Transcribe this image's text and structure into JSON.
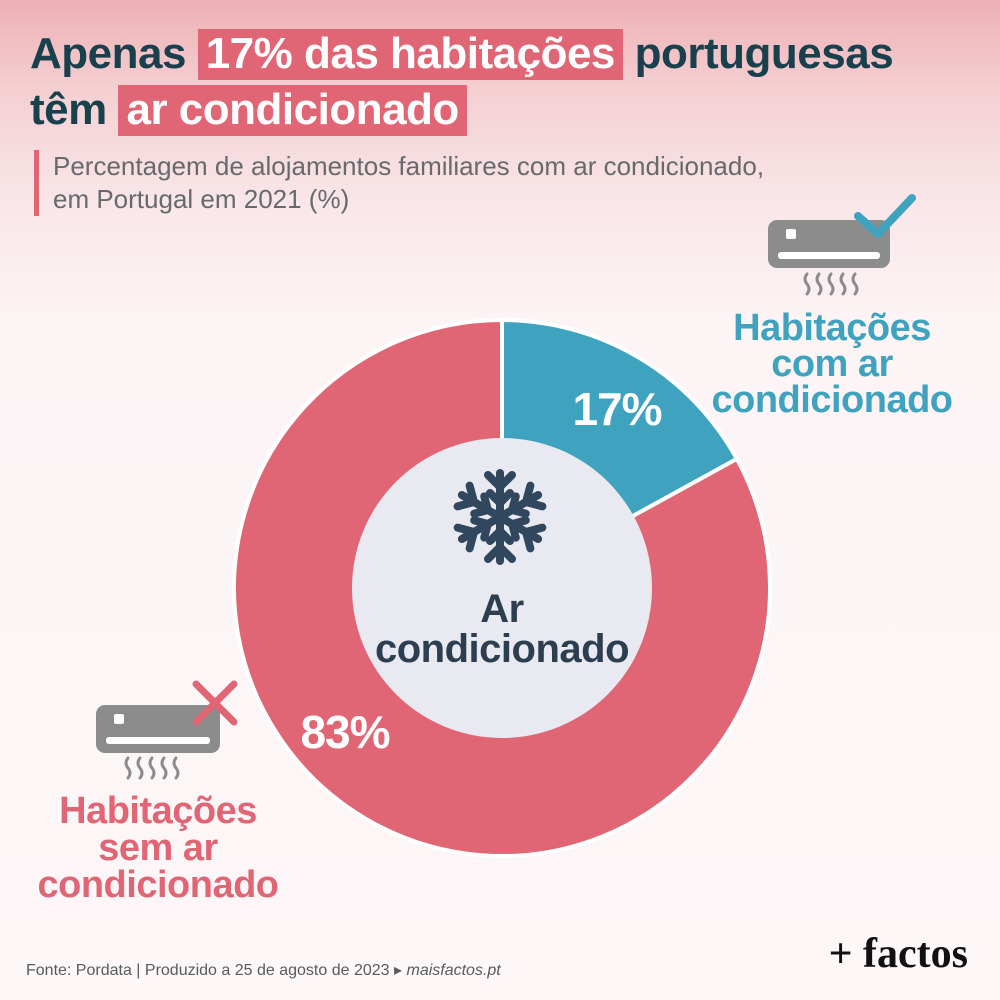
{
  "title": {
    "part1": "Apenas",
    "highlight1": "17% das habitações",
    "part2": "portuguesas",
    "part3": "têm",
    "highlight2": "ar condicionado"
  },
  "subtitle": {
    "line1": "Percentagem de alojamentos familiares com ar condicionado,",
    "line2": "em Portugal em 2021 (%)"
  },
  "chart_data": {
    "type": "pie",
    "donut": true,
    "center_label": [
      "Ar",
      "condicionado"
    ],
    "slices": [
      {
        "label": "Habitações com ar condicionado",
        "label_lines": [
          "Habitações",
          "com ar",
          "condicionado"
        ],
        "value": 17,
        "display": "17%",
        "color": "#3fa3bf",
        "icon": "air-conditioner-check-icon"
      },
      {
        "label": "Habitações sem ar condicionado",
        "label_lines": [
          "Habitações",
          "sem ar",
          "condicionado"
        ],
        "value": 83,
        "display": "83%",
        "color": "#e16675",
        "icon": "air-conditioner-cross-icon"
      }
    ],
    "center_icon": "snowflake-icon",
    "center_color": "#e9eaf1"
  },
  "footer": {
    "source": "Fonte: Pordata",
    "separator": "|",
    "produced": "Produzido a 25 de agosto de 2023",
    "arrow": "▸",
    "site": "maisfactos.pt",
    "logo": "+ factos"
  }
}
